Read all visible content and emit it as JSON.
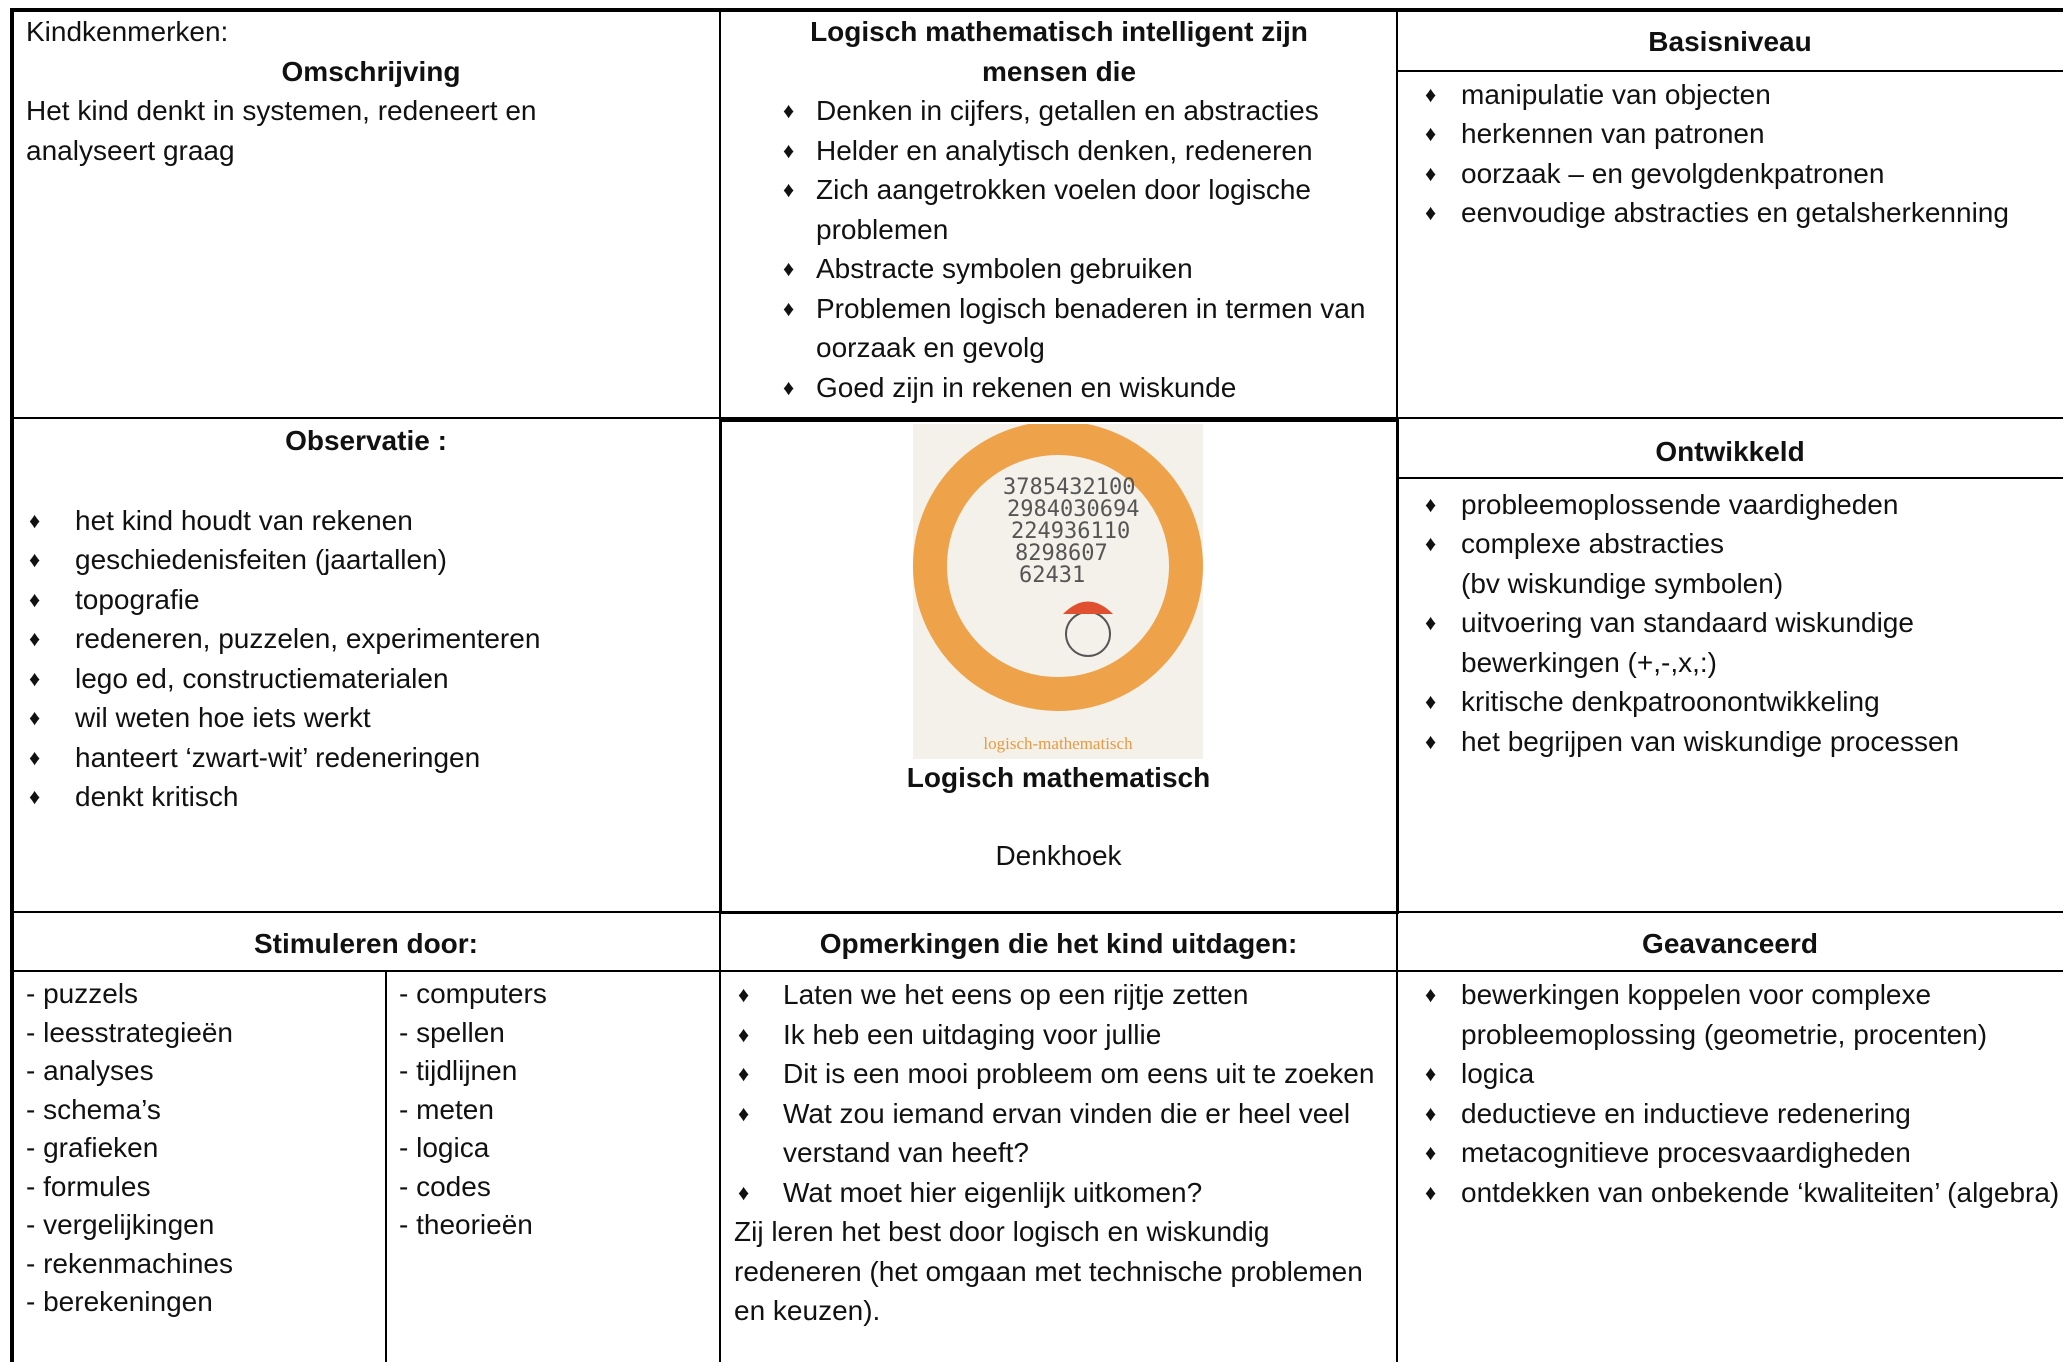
{
  "kindkenmerken": {
    "label": "Kindkenmerken:",
    "title": "Omschrijving",
    "text": "Het kind denkt in systemen, redeneert en analyseert graag"
  },
  "intelligent": {
    "title": "Logisch mathematisch intelligent zijn mensen die",
    "items": [
      "Denken in cijfers, getallen en abstracties",
      "Helder en analytisch denken, redeneren",
      "Zich aangetrokken voelen door logische problemen",
      "Abstracte symbolen gebruiken",
      "Problemen logisch benaderen in termen van oorzaak en gevolg",
      "Goed zijn in rekenen en wiskunde"
    ]
  },
  "basisniveau": {
    "title": "Basisniveau",
    "items": [
      "manipulatie van objecten",
      "herkennen van patronen",
      "oorzaak – en gevolgdenkpatronen",
      "eenvoudige abstracties en getalsherkenning"
    ]
  },
  "observatie": {
    "title": "Observatie :",
    "items": [
      "het kind houdt van rekenen",
      "geschiedenisfeiten (jaartallen)",
      "topografie",
      "redeneren, puzzelen, experimenteren",
      "lego ed, constructiematerialen",
      "wil weten hoe iets werkt",
      "hanteert ‘zwart-wit’ redeneringen",
      "denkt kritisch"
    ]
  },
  "center": {
    "image_numbers": [
      "3785432100",
      "2984030694",
      "224936110",
      "8298607",
      "62431"
    ],
    "image_caption": "logisch-mathematisch",
    "title": "Logisch mathematisch",
    "subtitle": "Denkhoek"
  },
  "ontwikkeld": {
    "title": "Ontwikkeld",
    "items": [
      "probleemoplossende vaardigheden",
      "complexe abstracties\n(bv wiskundige symbolen)",
      "uitvoering van standaard wiskundige bewerkingen (+,-,x,:)",
      "kritische denkpatroonontwikkeling",
      "het begrijpen van wiskundige processen"
    ]
  },
  "stimuleren": {
    "title": "Stimuleren door:",
    "column1": [
      "- puzzels",
      "- leesstrategieën",
      "- analyses",
      "- schema’s",
      "- grafieken",
      "- formules",
      "- vergelijkingen",
      "- rekenmachines",
      "- berekeningen"
    ],
    "column2": [
      "- computers",
      "- spellen",
      "- tijdlijnen",
      "- meten",
      "- logica",
      "- codes",
      "- theorieën"
    ]
  },
  "opmerkingen": {
    "title": "Opmerkingen die het kind uitdagen:",
    "items": [
      "Laten we het eens op een rijtje zetten",
      "Ik heb een uitdaging voor jullie",
      "Dit is een mooi probleem om eens uit te zoeken",
      "Wat zou iemand ervan vinden die er heel veel verstand van heeft?",
      "Wat moet hier eigenlijk uitkomen?"
    ],
    "text": "Zij leren het best door logisch en wiskundig redeneren (het omgaan met technische problemen en keuzen)."
  },
  "geavanceerd": {
    "title": "Geavanceerd",
    "items": [
      "bewerkingen koppelen voor complexe probleemoplossing (geometrie, procenten)",
      "logica",
      "deductieve en inductieve redenering",
      "metacognitieve procesvaardigheden",
      "ontdekken van onbekende ‘kwaliteiten’ (algebra)"
    ]
  }
}
